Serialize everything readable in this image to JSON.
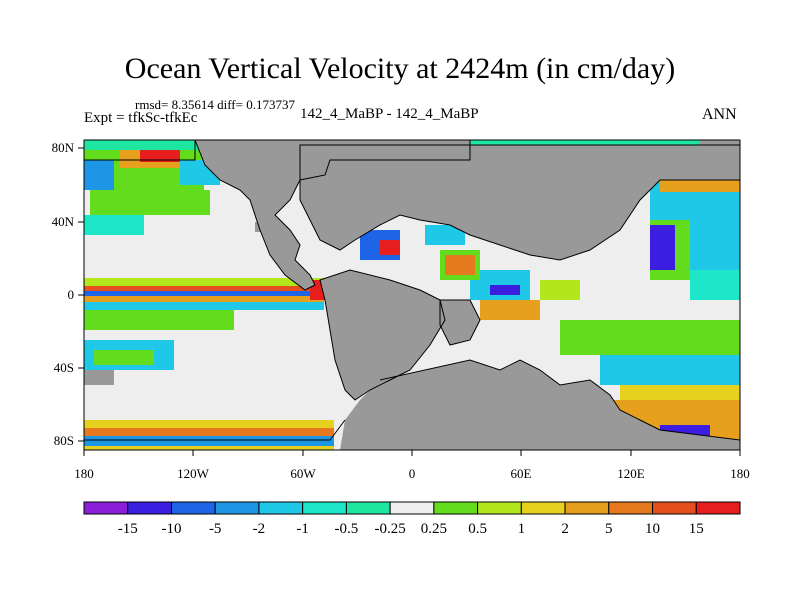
{
  "title": "Ocean Vertical Velocity at 2424m (in cm/day)",
  "stats_line": "rmsd= 8.35614 diff= 0.173737",
  "expt_line": "Expt = tfkSc-tfkEc",
  "center_label": "142_4_MaBP - 142_4_MaBP",
  "season": "ANN",
  "axes": {
    "x_ticks": [
      "180",
      "120W",
      "60W",
      "0",
      "60E",
      "120E",
      "180"
    ],
    "y_ticks": [
      "80N",
      "40N",
      "0",
      "40S",
      "80S"
    ]
  },
  "colorbar": {
    "labels": [
      "-15",
      "-10",
      "-5",
      "-2",
      "-1",
      "-0.5",
      "-0.25",
      "0.25",
      "0.5",
      "1",
      "2",
      "5",
      "10",
      "15"
    ],
    "colors": [
      "#8a1ed9",
      "#3c1ee0",
      "#1e64e6",
      "#1e96e6",
      "#1ec8e6",
      "#1ee6c8",
      "#1ee6a0",
      "#eeeeee",
      "#64dc1e",
      "#b4e61e",
      "#e6d21e",
      "#e6a01e",
      "#e6781e",
      "#e6501e",
      "#e61e1e"
    ]
  },
  "palette": {
    "land": "#999999",
    "ocean_neutral": "#eeeeee"
  }
}
